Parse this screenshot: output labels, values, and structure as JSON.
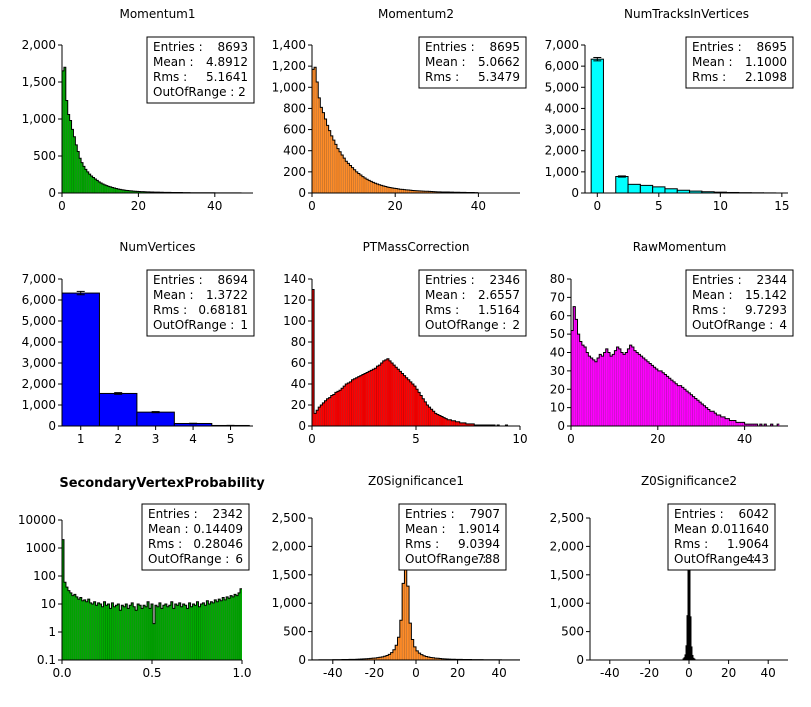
{
  "chart_data": [
    {
      "type": "bar",
      "title": "Momentum1",
      "color": "#00aa00",
      "xlim": [
        0,
        50
      ],
      "ylim": [
        0,
        2000
      ],
      "xticks": [
        0,
        20,
        40
      ],
      "xtick_labels": [
        "0",
        "20",
        "40"
      ],
      "yticks": [
        0,
        500,
        1000,
        1500,
        2000
      ],
      "ytick_labels": [
        "0",
        "500",
        "1,000",
        "1,500",
        "2,000"
      ],
      "bin_edges": [
        0,
        47
      ],
      "values": [
        1650,
        1700,
        1250,
        1060,
        980,
        860,
        760,
        650,
        560,
        470,
        410,
        360,
        320,
        285,
        255,
        230,
        210,
        190,
        170,
        150,
        135,
        122,
        110,
        100,
        90,
        82,
        74,
        67,
        60,
        54,
        49,
        44,
        40,
        36,
        33,
        30,
        28,
        26,
        24,
        22,
        20,
        19,
        18,
        17,
        16,
        15,
        14,
        13,
        12,
        12,
        11,
        10,
        10,
        9,
        9,
        8,
        8,
        7,
        7,
        7,
        6,
        6,
        6,
        5,
        5,
        5,
        5,
        4,
        4,
        4,
        4,
        4,
        3,
        3,
        3,
        3,
        3,
        3,
        3,
        3,
        2,
        2,
        2,
        2,
        2,
        2,
        2,
        2,
        2,
        2,
        2,
        2,
        2,
        2
      ],
      "stats": [
        {
          "label": "Entries :",
          "value": "8693"
        },
        {
          "label": "Mean :",
          "value": "4.8912"
        },
        {
          "label": "Rms :",
          "value": "5.1641"
        },
        {
          "label": "OutOfRange : 2",
          "value": ""
        }
      ]
    },
    {
      "type": "bar",
      "title": "Momentum2",
      "color": "#ff8c28",
      "xlim": [
        0,
        50
      ],
      "ylim": [
        0,
        1400
      ],
      "xticks": [
        0,
        20,
        40
      ],
      "xtick_labels": [
        "0",
        "20",
        "40"
      ],
      "yticks": [
        0,
        200,
        400,
        600,
        800,
        1000,
        1200,
        1400
      ],
      "ytick_labels": [
        "0",
        "200",
        "400",
        "600",
        "800",
        "1,000",
        "1,200",
        "1,400"
      ],
      "bin_edges": [
        0,
        40
      ],
      "values": [
        1170,
        1190,
        1050,
        900,
        810,
        760,
        700,
        640,
        590,
        540,
        500,
        460,
        420,
        390,
        360,
        330,
        300,
        280,
        260,
        240,
        220,
        200,
        185,
        170,
        155,
        142,
        130,
        120,
        110,
        100,
        92,
        85,
        78,
        72,
        66,
        61,
        56,
        52,
        48,
        45,
        42,
        39,
        36,
        34,
        32,
        30,
        28,
        26,
        24,
        22,
        21,
        20,
        19,
        18,
        17,
        16,
        15,
        14,
        13,
        12,
        11,
        11,
        10,
        10,
        9,
        9,
        8,
        8,
        7,
        7,
        7,
        6,
        6,
        6,
        5,
        5,
        5,
        5,
        4,
        4
      ],
      "stats": [
        {
          "label": "Entries :",
          "value": "8695"
        },
        {
          "label": "Mean :",
          "value": "5.0662"
        },
        {
          "label": "Rms :",
          "value": "5.3479"
        }
      ]
    },
    {
      "type": "bar",
      "title": "NumTracksInVertices",
      "color": "#00ffff",
      "xlim": [
        -1,
        15.5
      ],
      "ylim": [
        0,
        7000
      ],
      "xticks": [
        0,
        5,
        10,
        15
      ],
      "xtick_labels": [
        "0",
        "5",
        "10",
        "15"
      ],
      "yticks": [
        0,
        1000,
        2000,
        3000,
        4000,
        5000,
        6000,
        7000
      ],
      "ytick_labels": [
        "0",
        "1,000",
        "2,000",
        "3,000",
        "4,000",
        "5,000",
        "6,000",
        "7,000"
      ],
      "bin_edges": [
        -0.5,
        14.5
      ],
      "values": [
        6330,
        0,
        780,
        410,
        360,
        290,
        200,
        130,
        90,
        60,
        40,
        25,
        15,
        10,
        5
      ],
      "errorbars": [
        true,
        false,
        true,
        false,
        false,
        false,
        false,
        false,
        false,
        false,
        false,
        false,
        false,
        false,
        false
      ],
      "stats": [
        {
          "label": "Entries :",
          "value": "8695"
        },
        {
          "label": "Mean :",
          "value": "1.1000"
        },
        {
          "label": "Rms :",
          "value": "2.1098"
        }
      ]
    },
    {
      "type": "bar",
      "title": "NumVertices",
      "color": "#0000ff",
      "xlim": [
        0.5,
        5.6
      ],
      "ylim": [
        0,
        7000
      ],
      "xticks": [
        1,
        2,
        3,
        4,
        5
      ],
      "xtick_labels": [
        "1",
        "2",
        "3",
        "4",
        "5"
      ],
      "yticks": [
        0,
        1000,
        2000,
        3000,
        4000,
        5000,
        6000,
        7000
      ],
      "ytick_labels": [
        "0",
        "1,000",
        "2,000",
        "3,000",
        "4,000",
        "5,000",
        "6,000",
        "7,000"
      ],
      "bin_edges": [
        0.5,
        5.5
      ],
      "values": [
        6330,
        1550,
        660,
        120,
        25
      ],
      "errorbars": [
        true,
        true,
        true,
        true,
        true
      ],
      "stats": [
        {
          "label": "Entries :",
          "value": "8694"
        },
        {
          "label": "Mean :",
          "value": "1.3722"
        },
        {
          "label": "Rms :",
          "value": "0.68181"
        },
        {
          "label": "OutOfRange :",
          "value": "1"
        }
      ]
    },
    {
      "type": "bar",
      "title": "PTMassCorrection",
      "color": "#ff0000",
      "xlim": [
        0,
        10
      ],
      "ylim": [
        0,
        140
      ],
      "xticks": [
        0,
        5,
        10
      ],
      "xtick_labels": [
        "0",
        "5",
        "10"
      ],
      "yticks": [
        0,
        20,
        40,
        60,
        80,
        100,
        120,
        140
      ],
      "ytick_labels": [
        "0",
        "20",
        "40",
        "60",
        "80",
        "100",
        "120",
        "140"
      ],
      "bin_edges": [
        0,
        9.5
      ],
      "values": [
        130,
        12,
        15,
        18,
        20,
        22,
        24,
        26,
        27,
        29,
        30,
        32,
        33,
        34,
        36,
        38,
        40,
        41,
        42,
        44,
        45,
        46,
        47,
        48,
        49,
        50,
        51,
        52,
        53,
        54,
        55,
        57,
        58,
        60,
        62,
        63,
        64,
        62,
        60,
        58,
        56,
        54,
        52,
        50,
        48,
        46,
        44,
        42,
        40,
        38,
        35,
        32,
        29,
        26,
        23,
        20,
        18,
        16,
        14,
        12,
        11,
        10,
        9,
        8,
        7,
        6,
        6,
        5,
        5,
        4,
        4,
        3,
        3,
        3,
        2,
        2,
        2,
        2,
        1,
        1,
        1,
        1,
        1,
        1,
        1,
        1,
        1,
        1,
        0,
        1,
        0,
        0,
        0,
        1,
        0
      ],
      "stats": [
        {
          "label": "Entries :",
          "value": "2346"
        },
        {
          "label": "Mean :",
          "value": "2.6557"
        },
        {
          "label": "Rms :",
          "value": "1.5164"
        },
        {
          "label": "OutOfRange :",
          "value": "2"
        }
      ]
    },
    {
      "type": "bar",
      "title": "RawMomentum",
      "color": "#ff00ff",
      "xlim": [
        0,
        50
      ],
      "ylim": [
        0,
        80
      ],
      "xticks": [
        0,
        20,
        40
      ],
      "xtick_labels": [
        "0",
        "20",
        "40"
      ],
      "yticks": [
        0,
        10,
        20,
        30,
        40,
        50,
        60,
        70,
        80
      ],
      "ytick_labels": [
        "0",
        "10",
        "20",
        "30",
        "40",
        "50",
        "60",
        "70",
        "80"
      ],
      "bin_edges": [
        0,
        48
      ],
      "values": [
        52,
        65,
        58,
        50,
        46,
        44,
        43,
        40,
        38,
        37,
        36,
        35,
        37,
        39,
        38,
        40,
        42,
        40,
        38,
        39,
        41,
        43,
        42,
        40,
        39,
        40,
        42,
        44,
        43,
        41,
        40,
        39,
        38,
        37,
        36,
        35,
        34,
        33,
        32,
        31,
        30,
        30,
        29,
        28,
        27,
        26,
        25,
        24,
        23,
        22,
        22,
        21,
        20,
        19,
        18,
        17,
        16,
        15,
        14,
        13,
        12,
        11,
        10,
        9,
        8,
        8,
        7,
        6,
        6,
        5,
        5,
        4,
        4,
        3,
        3,
        3,
        2,
        2,
        2,
        2,
        1,
        1,
        1,
        1,
        1,
        1,
        0,
        1,
        0,
        1,
        0,
        0,
        1,
        0,
        0,
        1
      ],
      "stats": [
        {
          "label": "Entries :",
          "value": "2344"
        },
        {
          "label": "Mean :",
          "value": "15.142"
        },
        {
          "label": "Rms :",
          "value": "9.7293"
        },
        {
          "label": "OutOfRange :",
          "value": "4"
        }
      ]
    },
    {
      "type": "bar",
      "title": "SecondaryVertexProbability",
      "title_bold": true,
      "log_y": true,
      "color": "#00aa00",
      "xlim": [
        0,
        1
      ],
      "ylim": [
        0.1,
        10000
      ],
      "xticks": [
        0,
        0.5,
        1
      ],
      "xtick_labels": [
        "0.0",
        "0.5",
        "1.0"
      ],
      "yticks": [
        0.1,
        1,
        10,
        100,
        1000,
        10000
      ],
      "ytick_labels": [
        "0.1",
        "1",
        "10",
        "100",
        "1000",
        "10000"
      ],
      "bin_edges": [
        0,
        1
      ],
      "values": [
        2000,
        60,
        40,
        30,
        25,
        20,
        22,
        18,
        15,
        17,
        13,
        14,
        12,
        15,
        11,
        10,
        12,
        9,
        11,
        10,
        8,
        12,
        9,
        10,
        7,
        11,
        8,
        9,
        10,
        6,
        9,
        8,
        10,
        7,
        9,
        11,
        8,
        6,
        10,
        9,
        7,
        9,
        8,
        12,
        7,
        10,
        2,
        9,
        8,
        11,
        7,
        9,
        10,
        8,
        9,
        12,
        7,
        10,
        9,
        11,
        8,
        10,
        9,
        7,
        11,
        8,
        10,
        9,
        12,
        8,
        10,
        11,
        9,
        13,
        10,
        12,
        11,
        14,
        12,
        15,
        13,
        17,
        14,
        18,
        16,
        20,
        18,
        22,
        20,
        25,
        35
      ],
      "stats": [
        {
          "label": "Entries :",
          "value": "2342"
        },
        {
          "label": "Mean :",
          "value": "0.14409"
        },
        {
          "label": "Rms :",
          "value": "0.28046"
        },
        {
          "label": "OutOfRange :",
          "value": "6"
        }
      ]
    },
    {
      "type": "bar",
      "title": "Z0Significance1",
      "color": "#ff8c28",
      "xlim": [
        -50,
        50
      ],
      "ylim": [
        0,
        2500
      ],
      "xticks": [
        -40,
        -20,
        0,
        20,
        40
      ],
      "xtick_labels": [
        "-40",
        "-20",
        "0",
        "20",
        "40"
      ],
      "yticks": [
        0,
        500,
        1000,
        1500,
        2000,
        2500
      ],
      "ytick_labels": [
        "0",
        "500",
        "1,000",
        "1,500",
        "2,000",
        "2,500"
      ],
      "bin_edges": [
        -50,
        50
      ],
      "values": [
        3,
        3,
        3,
        4,
        4,
        4,
        5,
        5,
        5,
        6,
        6,
        7,
        7,
        8,
        8,
        9,
        10,
        11,
        12,
        13,
        15,
        17,
        19,
        22,
        25,
        28,
        32,
        36,
        42,
        48,
        55,
        65,
        80,
        100,
        130,
        180,
        260,
        400,
        700,
        1350,
        2000,
        1300,
        650,
        360,
        230,
        160,
        120,
        95,
        75,
        62,
        52,
        45,
        39,
        34,
        30,
        26,
        23,
        20,
        18,
        16,
        14,
        13,
        12,
        11,
        10,
        9,
        9,
        8,
        8,
        7,
        7,
        6,
        6,
        6,
        5,
        5,
        5,
        5,
        4,
        4,
        4,
        4,
        3,
        3,
        3,
        3,
        3,
        3,
        3,
        3
      ],
      "stats": [
        {
          "label": "Entries :",
          "value": "7907"
        },
        {
          "label": "Mean :",
          "value": "1.9014"
        },
        {
          "label": "Rms :",
          "value": "9.0394"
        },
        {
          "label": "OutOfRange :",
          "value": "788"
        }
      ]
    },
    {
      "type": "bar",
      "title": "Z0Significance2",
      "color": "#00ffff",
      "xlim": [
        -50,
        50
      ],
      "ylim": [
        0,
        2500
      ],
      "xticks": [
        -40,
        -20,
        0,
        20,
        40
      ],
      "xtick_labels": [
        "-40",
        "-20",
        "0",
        "20",
        "40"
      ],
      "yticks": [
        0,
        500,
        1000,
        1500,
        2000,
        2500
      ],
      "ytick_labels": [
        "0",
        "500",
        "1,000",
        "1,500",
        "2,000",
        "2,500"
      ],
      "bin_edges": [
        -3,
        3
      ],
      "values": [
        20,
        40,
        90,
        250,
        780,
        1950,
        1850,
        760,
        230,
        80,
        30,
        15
      ],
      "stats": [
        {
          "label": "Entries :",
          "value": "6042"
        },
        {
          "label": "Mean :",
          "value": "0.011640"
        },
        {
          "label": "Rms :",
          "value": "1.9064"
        },
        {
          "label": "OutOfRange :",
          "value": "443"
        }
      ]
    }
  ]
}
